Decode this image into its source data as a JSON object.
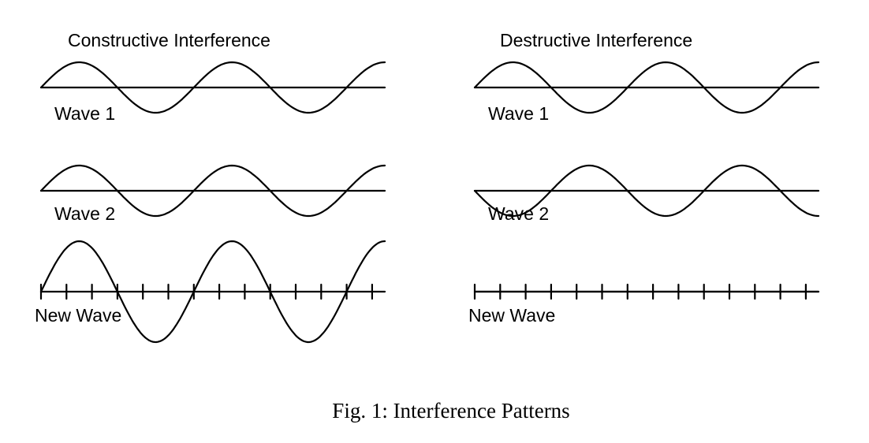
{
  "colors": {
    "ink": "#000000",
    "background": "#ffffff"
  },
  "panels": [
    {
      "title": "Constructive Interference",
      "wave1_label": "Wave 1",
      "wave2_label": "Wave 2",
      "result_label": "New Wave",
      "wave1": {
        "amplitude": 1,
        "cycles": 2.25,
        "phase_deg": 0
      },
      "wave2": {
        "amplitude": 1,
        "cycles": 2.25,
        "phase_deg": 0
      },
      "result": {
        "amplitude": 2,
        "cycles": 2.25,
        "phase_deg": 0
      }
    },
    {
      "title": "Destructive Interference",
      "wave1_label": "Wave 1",
      "wave2_label": "Wave 2",
      "result_label": "New Wave",
      "wave1": {
        "amplitude": 1,
        "cycles": 2.25,
        "phase_deg": 0
      },
      "wave2": {
        "amplitude": 1,
        "cycles": 2.25,
        "phase_deg": 180
      },
      "result": {
        "amplitude": 0,
        "cycles": 2.25,
        "phase_deg": 0
      }
    }
  ],
  "caption": "Fig. 1: Interference Patterns"
}
